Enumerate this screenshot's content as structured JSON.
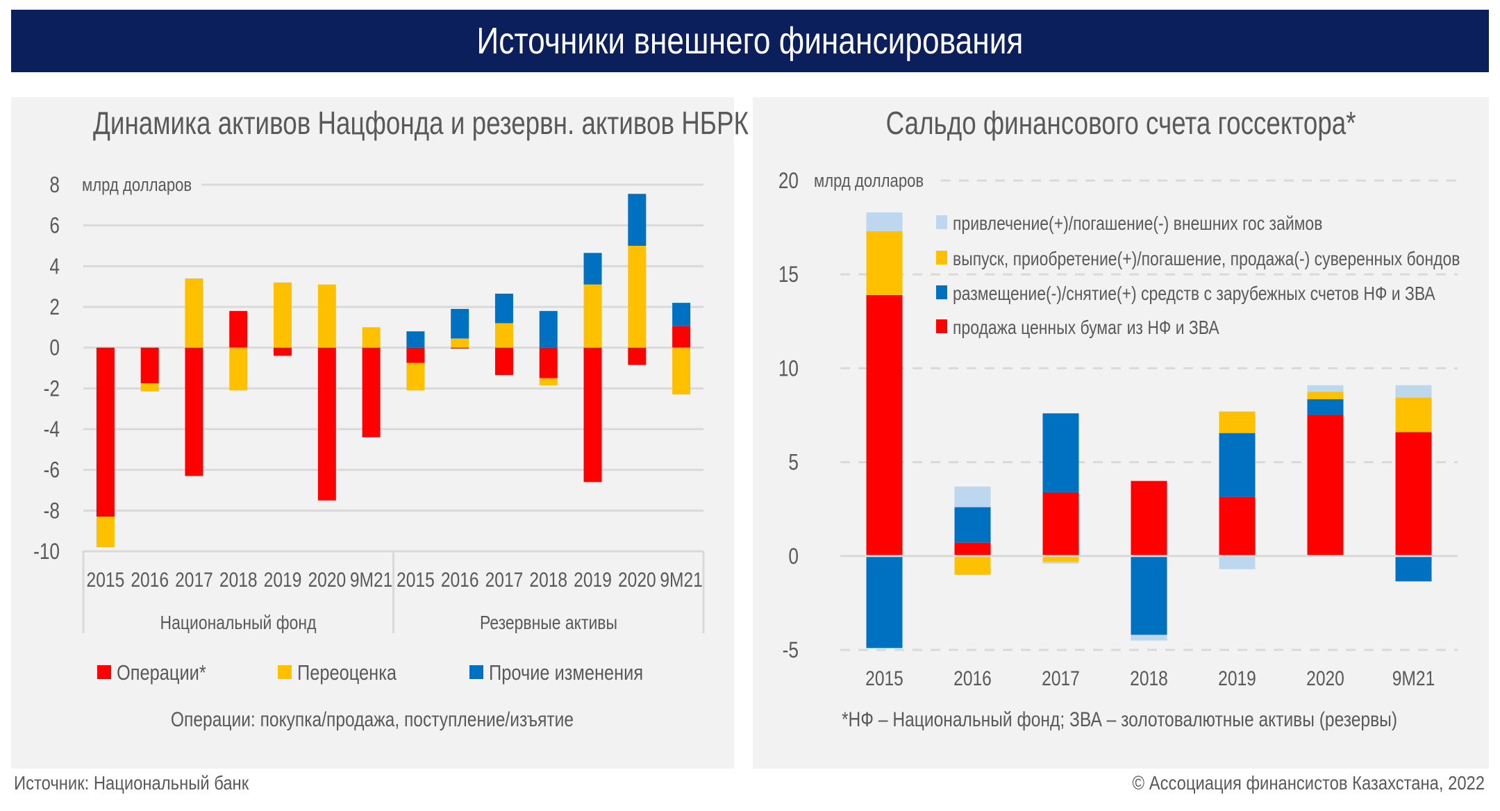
{
  "title": "Источники внешнего финансирования",
  "footer": {
    "source": "Источник: Национальный банк",
    "copyright": "© Ассоциация финансистов Казахстана, 2022"
  },
  "colors": {
    "banner": "#0b1f5c",
    "red": "#ff0000",
    "yellow": "#ffc000",
    "blue": "#0070c0",
    "lightblue": "#bdd7ee"
  },
  "chart_data": [
    {
      "type": "bar",
      "stacked": true,
      "title": "Динамика активов Нацфонда и резервн. активов НБРК",
      "ylabel": "млрд долларов",
      "ylim": [
        -10,
        8
      ],
      "yticks": [
        8,
        6,
        4,
        2,
        0,
        -2,
        -4,
        -6,
        -8,
        -10
      ],
      "grid": true,
      "legend_position": "bottom",
      "groups": [
        "Национальный фонд",
        "Резервные активы"
      ],
      "categories": [
        "2015",
        "2016",
        "2017",
        "2018",
        "2019",
        "2020",
        "9M21",
        "2015",
        "2016",
        "2017",
        "2018",
        "2019",
        "2020",
        "9M21"
      ],
      "series": [
        {
          "name": "Операции*",
          "color": "#ff0000",
          "values": [
            -8.3,
            -1.75,
            -6.3,
            1.8,
            -0.4,
            -7.5,
            -4.4,
            -0.75,
            -0.05,
            -1.35,
            -1.5,
            -6.6,
            -0.85,
            1.05
          ]
        },
        {
          "name": "Переоценка",
          "color": "#ffc000",
          "values": [
            -1.5,
            -0.4,
            3.4,
            -2.1,
            3.2,
            3.1,
            1.0,
            -1.35,
            0.45,
            1.2,
            -0.35,
            3.1,
            5.0,
            -2.3
          ]
        },
        {
          "name": "Прочие изменения",
          "color": "#0070c0",
          "values": [
            0,
            0,
            0,
            0,
            0,
            0,
            0,
            0.8,
            1.45,
            1.45,
            1.8,
            1.55,
            2.55,
            1.15
          ]
        }
      ],
      "note": "Операции: покупка/продажа, поступление/изъятие"
    },
    {
      "type": "bar",
      "stacked": true,
      "title": "Сальдо финансового счета госсектора*",
      "ylabel": "млрд долларов",
      "ylim": [
        -5,
        20
      ],
      "yticks": [
        20,
        15,
        10,
        5,
        0,
        -5
      ],
      "grid": true,
      "legend_position": "top-right",
      "categories": [
        "2015",
        "2016",
        "2017",
        "2018",
        "2019",
        "2020",
        "9M21"
      ],
      "series": [
        {
          "name": "продажа ценных бумаг из НФ и ЗВА",
          "color": "#ff0000",
          "values": [
            13.9,
            0.7,
            3.4,
            4.0,
            3.15,
            7.5,
            6.6
          ]
        },
        {
          "name": "размещение(-)/снятие(+) средств с зарубежных счетов НФ и ЗВА",
          "color": "#0070c0",
          "values": [
            -4.9,
            1.9,
            4.2,
            -4.2,
            3.4,
            0.85,
            -1.35
          ]
        },
        {
          "name": "выпуск, приобретение(+)/погашение, продажа(-) суверенных бондов",
          "color": "#ffc000",
          "values": [
            3.4,
            -1.0,
            -0.3,
            0,
            1.15,
            0.4,
            1.85
          ]
        },
        {
          "name": "привлечение(+)/погашение(-) внешних гос займов",
          "color": "#bdd7ee",
          "values": [
            1.0,
            1.1,
            -0.1,
            -0.3,
            -0.7,
            0.35,
            0.65
          ]
        }
      ],
      "legend_order": [
        3,
        2,
        1,
        0
      ],
      "note": "*НФ – Национальный фонд; ЗВА – золотовалютные активы (резервы)"
    }
  ]
}
